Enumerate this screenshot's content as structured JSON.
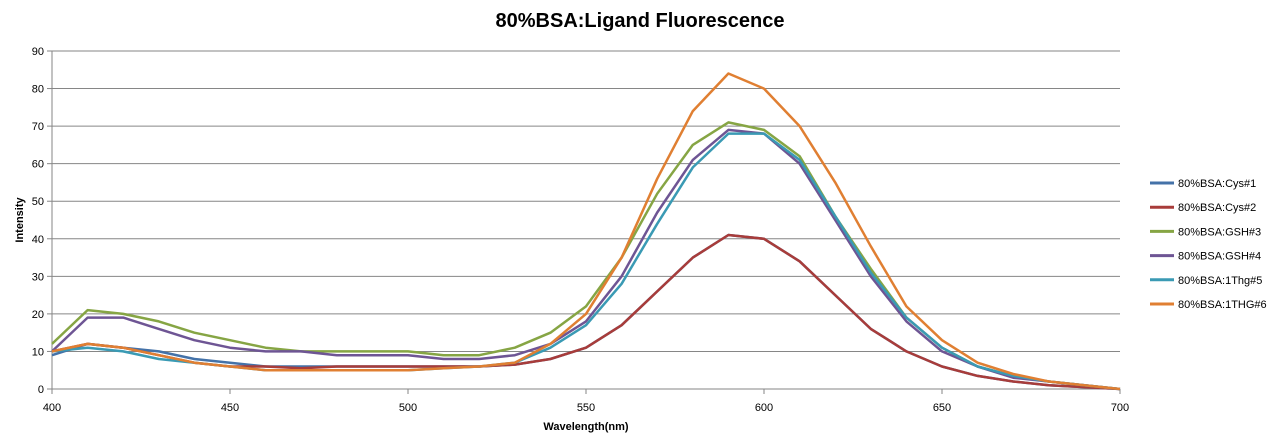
{
  "chart_data": {
    "type": "line",
    "title": "80%BSA:Ligand Fluorescence",
    "xlabel": "Wavelength(nm)",
    "ylabel": "Intensity",
    "xlim": [
      400,
      700
    ],
    "ylim": [
      0,
      90
    ],
    "xticks": [
      400,
      450,
      500,
      550,
      600,
      650,
      700
    ],
    "yticks": [
      0,
      10,
      20,
      30,
      40,
      50,
      60,
      70,
      80,
      90
    ],
    "grid": "horizontal",
    "legend_position": "right",
    "x": [
      400,
      410,
      420,
      430,
      440,
      450,
      460,
      470,
      480,
      490,
      500,
      510,
      520,
      530,
      540,
      550,
      560,
      570,
      580,
      590,
      600,
      610,
      620,
      630,
      640,
      650,
      660,
      670,
      680,
      690,
      700
    ],
    "series": [
      {
        "name": "80%BSA:Cys#1",
        "color": "#4472a8",
        "values": [
          9,
          12,
          11,
          10,
          8,
          7,
          6,
          6,
          6,
          6,
          6,
          6,
          6,
          6.5,
          8,
          11,
          17,
          26,
          35,
          41,
          40,
          34,
          25,
          16,
          10,
          6,
          3.5,
          2,
          1,
          0.5,
          0
        ]
      },
      {
        "name": "80%BSA:Cys#2",
        "color": "#a83c3a",
        "values": [
          10,
          12,
          11,
          9,
          7,
          6,
          6,
          5.5,
          6,
          6,
          6,
          6,
          6,
          6.5,
          8,
          11,
          17,
          26,
          35,
          41,
          40,
          34,
          25,
          16,
          10,
          6,
          3.5,
          2,
          1,
          0.5,
          0
        ]
      },
      {
        "name": "80%BSA:GSH#3",
        "color": "#86a544",
        "values": [
          12,
          21,
          20,
          18,
          15,
          13,
          11,
          10,
          10,
          10,
          10,
          9,
          9,
          11,
          15,
          22,
          35,
          52,
          65,
          71,
          69,
          62,
          46,
          32,
          19,
          11,
          6,
          3.5,
          2,
          1,
          0
        ]
      },
      {
        "name": "80%BSA:GSH#4",
        "color": "#6e5594",
        "values": [
          10,
          19,
          19,
          16,
          13,
          11,
          10,
          10,
          9,
          9,
          9,
          8,
          8,
          9,
          12,
          18,
          30,
          47,
          61,
          69,
          68,
          60,
          45,
          30,
          18,
          10,
          6,
          3,
          2,
          1,
          0
        ]
      },
      {
        "name": "80%BSA:1Thg#5",
        "color": "#3a9ab4",
        "values": [
          10,
          11,
          10,
          8,
          7,
          6,
          5,
          5,
          5,
          5,
          5,
          5.5,
          6,
          7,
          11,
          17,
          28,
          44,
          59,
          68,
          68,
          61,
          46,
          31,
          19,
          11,
          6,
          3.5,
          2,
          1,
          0
        ]
      },
      {
        "name": "80%BSA:1THG#6",
        "color": "#e07f32",
        "values": [
          10,
          12,
          11,
          9,
          7,
          6,
          5,
          5,
          5,
          5,
          5,
          5.5,
          6,
          7,
          12,
          20,
          35,
          56,
          74,
          84,
          80,
          70,
          55,
          38,
          22,
          13,
          7,
          4,
          2,
          1,
          0
        ]
      }
    ]
  }
}
